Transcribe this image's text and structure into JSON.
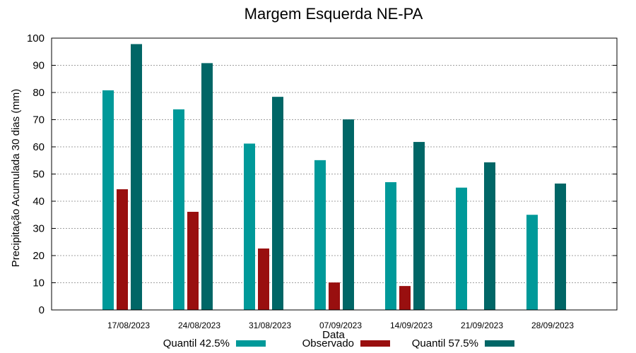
{
  "chart_data": {
    "type": "bar",
    "title": "Margem Esquerda NE-PA",
    "xlabel": "Data",
    "ylabel": "Precipitação Acumulada 30 dias (mm)",
    "ylim": [
      0,
      100
    ],
    "yticks": [
      0,
      10,
      20,
      30,
      40,
      50,
      60,
      70,
      80,
      90,
      100
    ],
    "grid": true,
    "legend_position": "bottom",
    "categories": [
      "17/08/2023",
      "24/08/2023",
      "31/08/2023",
      "07/09/2023",
      "14/09/2023",
      "21/09/2023",
      "28/09/2023"
    ],
    "series": [
      {
        "name": "Quantil 42.5%",
        "color": "#009999",
        "values": [
          80.8,
          73.8,
          61.2,
          55.1,
          47.0,
          45.0,
          35.0
        ]
      },
      {
        "name": "Observado",
        "color": "#990f0f",
        "values": [
          44.4,
          36.1,
          22.6,
          10.1,
          8.8,
          null,
          null
        ]
      },
      {
        "name": "Quantil 57.5%",
        "color": "#006666",
        "values": [
          97.8,
          90.8,
          78.4,
          70.1,
          61.8,
          54.3,
          46.5
        ]
      }
    ]
  }
}
